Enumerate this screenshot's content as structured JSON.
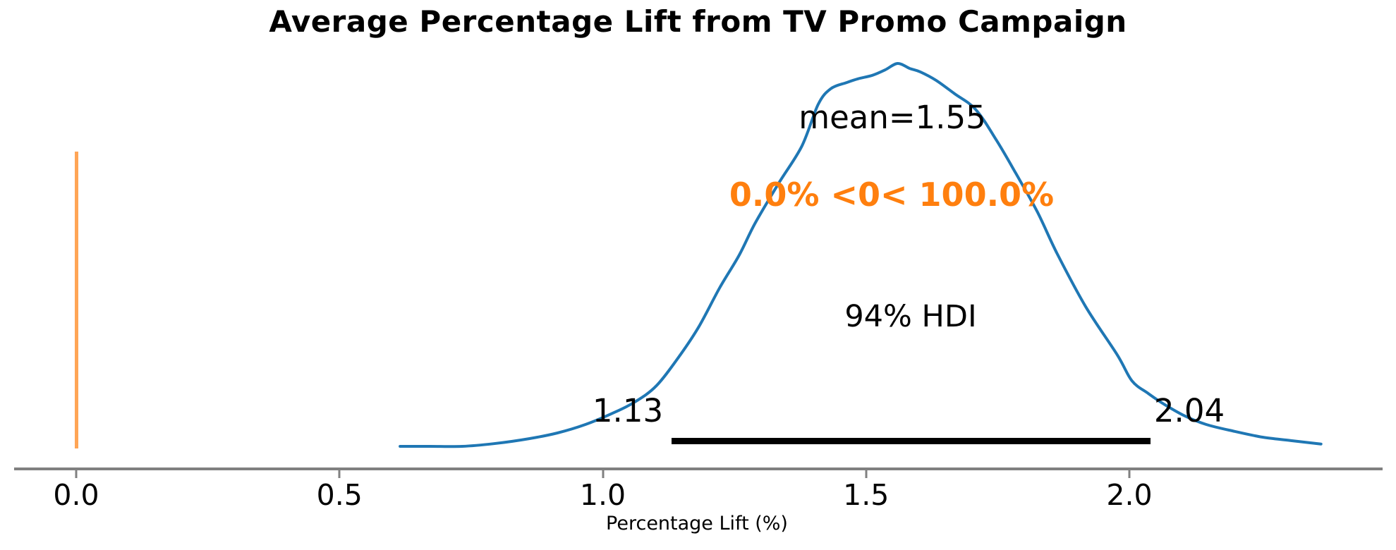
{
  "title": "Average Percentage Lift from TV Promo Campaign",
  "xlabel": "Percentage Lift (%)",
  "annotations": {
    "mean_label": "mean=1.55",
    "ref_label": "0.0% <0< 100.0%",
    "hdi_label": "94% HDI",
    "hdi_low_label": "1.13",
    "hdi_high_label": "2.04"
  },
  "colors": {
    "curve": "#1f77b4",
    "ref_line": "#ffa556",
    "ref_text": "#ff7f0e",
    "hdi_bar": "#000000",
    "axis": "#808080",
    "text": "#000000"
  },
  "chart_data": {
    "type": "line",
    "subtype": "kde-posterior",
    "title": "Average Percentage Lift from TV Promo Campaign",
    "xlabel": "Percentage Lift (%)",
    "x_ticks": [
      0.0,
      0.5,
      1.0,
      1.5,
      2.0
    ],
    "xlim": [
      -0.11,
      2.47
    ],
    "grid": false,
    "mean": 1.55,
    "hdi_prob": 0.94,
    "hdi_low": 1.13,
    "hdi_high": 2.04,
    "ref_value": 0.0,
    "pct_below_ref": "0.0%",
    "pct_above_ref": "100.0%",
    "kde": {
      "x": [
        0.615,
        0.672,
        0.733,
        0.793,
        0.86,
        0.914,
        0.967,
        1.021,
        1.061,
        1.101,
        1.141,
        1.181,
        1.222,
        1.259,
        1.289,
        1.334,
        1.378,
        1.409,
        1.433,
        1.463,
        1.485,
        1.512,
        1.536,
        1.56,
        1.583,
        1.603,
        1.633,
        1.668,
        1.708,
        1.747,
        1.784,
        1.825,
        1.863,
        1.917,
        1.977,
        2.005,
        2.036,
        2.066,
        2.106,
        2.146,
        2.2,
        2.253,
        2.307,
        2.364
      ],
      "density": [
        0.0,
        0.0,
        0.0,
        0.007,
        0.02,
        0.035,
        0.057,
        0.088,
        0.116,
        0.157,
        0.227,
        0.309,
        0.414,
        0.499,
        0.582,
        0.687,
        0.784,
        0.893,
        0.934,
        0.95,
        0.96,
        0.969,
        0.983,
        1.0,
        0.987,
        0.978,
        0.956,
        0.921,
        0.88,
        0.801,
        0.714,
        0.613,
        0.503,
        0.365,
        0.239,
        0.171,
        0.138,
        0.11,
        0.079,
        0.057,
        0.039,
        0.024,
        0.015,
        0.006
      ]
    }
  }
}
